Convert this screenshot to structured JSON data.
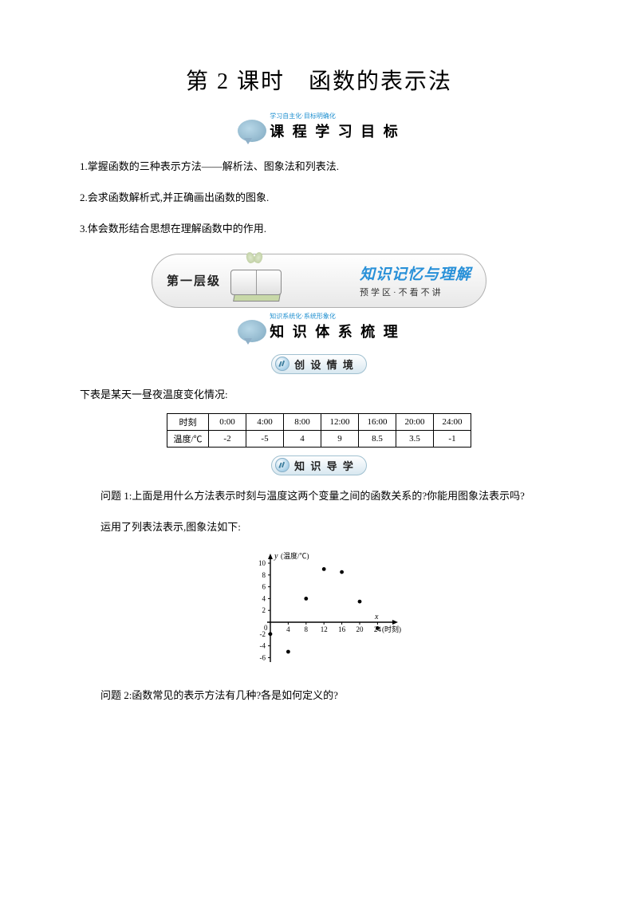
{
  "title": "第 2 课时　函数的表示法",
  "banner1": {
    "sub": "学习自主化·目标明确化",
    "text": "课 程 学 习 目 标"
  },
  "objectives": {
    "o1": "1.掌握函数的三种表示方法——解析法、图象法和列表法.",
    "o2": "2.会求函数解析式,并正确画出函数的图象.",
    "o3": "3.体会数形结合思想在理解函数中的作用."
  },
  "level": {
    "label": "第一层级",
    "title": "知识记忆与理解",
    "sub": "预学区·不看不讲"
  },
  "banner2": {
    "sub": "知识系统化·系统形象化",
    "text": "知 识 体 系 梳 理"
  },
  "pill1": "创 设 情 境",
  "context_line": "下表是某天一昼夜温度变化情况:",
  "table": {
    "rowhead1": "时刻",
    "rowhead2": "温度/℃",
    "times": [
      "0:00",
      "4:00",
      "8:00",
      "12:00",
      "16:00",
      "20:00",
      "24:00"
    ],
    "temps": [
      "-2",
      "-5",
      "4",
      "9",
      "8.5",
      "3.5",
      "-1"
    ]
  },
  "pill2": "知 识 导 学",
  "q1": "问题 1:上面是用什么方法表示时刻与温度这两个变量之间的函数关系的?你能用图象法表示吗?",
  "a1": "运用了列表法表示,图象法如下:",
  "chart": {
    "ylabel": "(温度/℃)",
    "xlabel": "(时刻)",
    "yticks": [
      "10",
      "8",
      "6",
      "4",
      "2",
      "-2",
      "-4",
      "-6"
    ],
    "xticks": [
      "4",
      "8",
      "12",
      "16",
      "20",
      "24"
    ],
    "points": [
      {
        "x": 0,
        "y": -2
      },
      {
        "x": 4,
        "y": -5
      },
      {
        "x": 8,
        "y": 4
      },
      {
        "x": 12,
        "y": 9
      },
      {
        "x": 16,
        "y": 8.5
      },
      {
        "x": 20,
        "y": 3.5
      },
      {
        "x": 24,
        "y": -1
      }
    ],
    "axis_color": "#000000",
    "point_color": "#000000",
    "bg": "#ffffff"
  },
  "q2": "问题 2:函数常见的表示方法有几种?各是如何定义的?"
}
